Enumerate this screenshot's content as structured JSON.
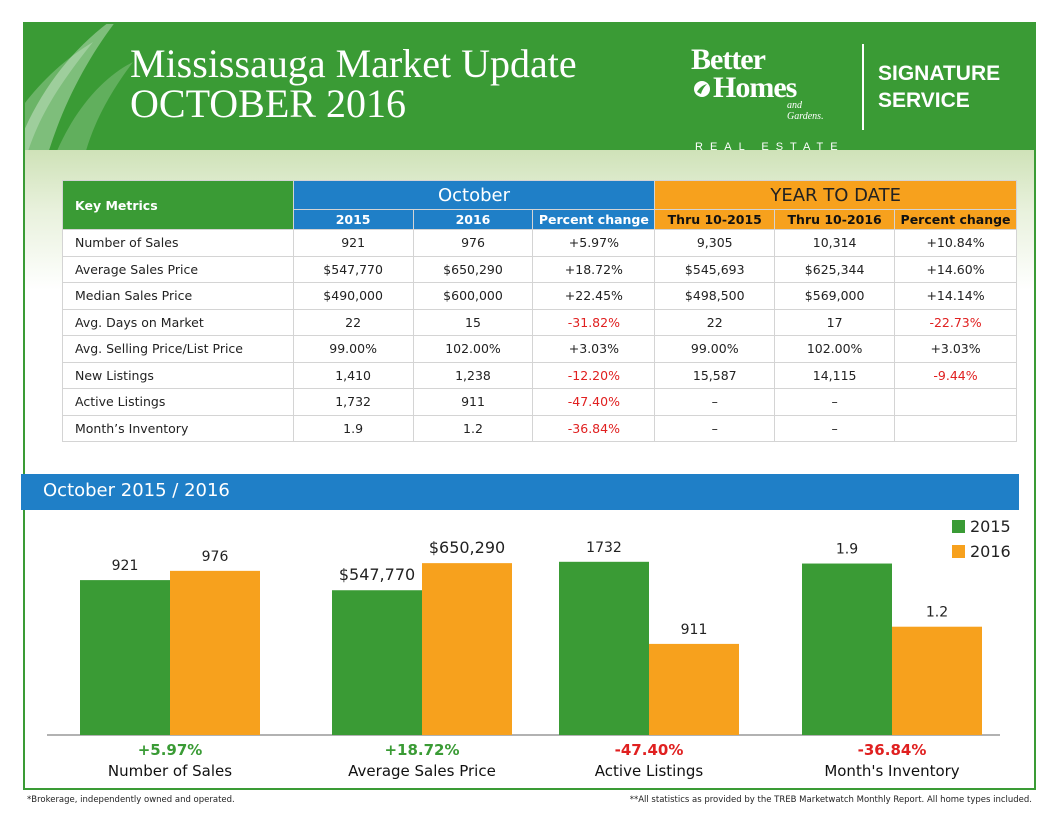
{
  "header": {
    "title_line1": "Mississauga Market Update",
    "title_line2": "OCTOBER 2016",
    "brand_line1": "Better",
    "brand_line2": "Homes",
    "brand_line3": "and Gardens.",
    "brand_line4": "REAL ESTATE",
    "signature_line1": "SIGNATURE",
    "signature_line2": "SERVICE"
  },
  "table": {
    "key_metrics_label": "Key Metrics",
    "october_label": "October",
    "ytd_label": "YEAR TO DATE",
    "sub_headers": [
      "2015",
      "2016",
      "Percent change",
      "Thru 10-2015",
      "Thru 10-2016",
      "Percent change"
    ],
    "rows": [
      {
        "label": "Number of Sales",
        "cells": [
          "921",
          "976",
          "+5.97%",
          "9,305",
          "10,314",
          "+10.84%"
        ]
      },
      {
        "label": "Average Sales Price",
        "cells": [
          "$547,770",
          "$650,290",
          "+18.72%",
          "$545,693",
          "$625,344",
          "+14.60%"
        ]
      },
      {
        "label": "Median Sales Price",
        "cells": [
          "$490,000",
          "$600,000",
          "+22.45%",
          "$498,500",
          "$569,000",
          "+14.14%"
        ]
      },
      {
        "label": "Avg. Days on Market",
        "cells": [
          "22",
          "15",
          "-31.82%",
          "22",
          "17",
          "-22.73%"
        ]
      },
      {
        "label": "Avg. Selling Price/List Price",
        "cells": [
          "99.00%",
          "102.00%",
          "+3.03%",
          "99.00%",
          "102.00%",
          "+3.03%"
        ]
      },
      {
        "label": "New Listings",
        "cells": [
          "1,410",
          "1,238",
          "-12.20%",
          "15,587",
          "14,115",
          "-9.44%"
        ]
      },
      {
        "label": "Active Listings",
        "cells": [
          "1,732",
          "911",
          "-47.40%",
          "–",
          "–",
          ""
        ]
      },
      {
        "label": "Month’s Inventory",
        "cells": [
          "1.9",
          "1.2",
          "-36.84%",
          "–",
          "–",
          ""
        ]
      }
    ]
  },
  "chart_band_title": "October 2015 / 2016",
  "chart_data": {
    "type": "bar",
    "categories": [
      "Number of Sales",
      "Average Sales Price",
      "Active Listings",
      "Month's Inventory"
    ],
    "change_labels": [
      "+5.97%",
      "+18.72%",
      "-47.40%",
      "-36.84%"
    ],
    "series": [
      {
        "name": "2015",
        "values": [
          921,
          547770,
          1732,
          1.9
        ],
        "value_labels": [
          "921",
          "$547,770",
          "1732",
          "1.9"
        ]
      },
      {
        "name": "2016",
        "values": [
          976,
          650290,
          911,
          1.2
        ],
        "value_labels": [
          "976",
          "$650,290",
          "911",
          "1.2"
        ]
      }
    ],
    "axis_max_per_category": [
      1100,
      700000,
      1850,
      2.05
    ],
    "legend_position": "top-right"
  },
  "colors": {
    "green": "#3a9b35",
    "orange": "#f7a11d",
    "blue": "#1f7fc7",
    "negative": "#e02020",
    "positive": "#3a9b35"
  },
  "footer": {
    "left": "*Brokerage, independently owned and operated.",
    "right": "**All statistics as provided by the TREB Marketwatch Monthly Report. All home types included."
  }
}
